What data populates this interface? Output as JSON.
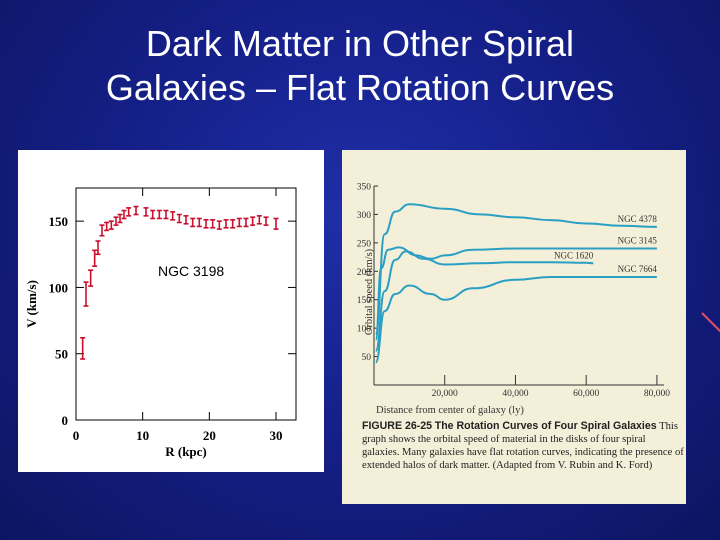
{
  "slide": {
    "title_line1": "Dark Matter in Other Spiral",
    "title_line2": "Galaxies – Flat Rotation Curves"
  },
  "colors": {
    "background": "#15208a",
    "left_points": "#c8102e",
    "right_curves": "#2a9fc4",
    "right_panel": "#f3efd9"
  },
  "chart_data": [
    {
      "type": "scatter",
      "annotation": "NGC 3198",
      "xlabel": "R (kpc)",
      "ylabel": "V (km/s)",
      "xlim": [
        0,
        33
      ],
      "ylim": [
        0,
        175
      ],
      "xticks": [
        0,
        10,
        20,
        30
      ],
      "yticks": [
        0,
        50,
        100,
        150
      ],
      "points": [
        {
          "x": 1.0,
          "y": 54,
          "err": 8
        },
        {
          "x": 1.5,
          "y": 95,
          "err": 9
        },
        {
          "x": 2.2,
          "y": 107,
          "err": 6
        },
        {
          "x": 2.8,
          "y": 122,
          "err": 6
        },
        {
          "x": 3.3,
          "y": 130,
          "err": 5
        },
        {
          "x": 3.9,
          "y": 143,
          "err": 4
        },
        {
          "x": 4.6,
          "y": 146,
          "err": 3
        },
        {
          "x": 5.3,
          "y": 147,
          "err": 3
        },
        {
          "x": 6.0,
          "y": 150,
          "err": 3
        },
        {
          "x": 6.6,
          "y": 152,
          "err": 3
        },
        {
          "x": 7.2,
          "y": 155,
          "err": 3
        },
        {
          "x": 7.9,
          "y": 157,
          "err": 3
        },
        {
          "x": 9.0,
          "y": 158,
          "err": 3
        },
        {
          "x": 10.5,
          "y": 157,
          "err": 3
        },
        {
          "x": 11.5,
          "y": 155,
          "err": 3
        },
        {
          "x": 12.5,
          "y": 155,
          "err": 3
        },
        {
          "x": 13.5,
          "y": 155,
          "err": 3
        },
        {
          "x": 14.5,
          "y": 154,
          "err": 3
        },
        {
          "x": 15.5,
          "y": 152,
          "err": 3
        },
        {
          "x": 16.5,
          "y": 151,
          "err": 3
        },
        {
          "x": 17.5,
          "y": 149,
          "err": 3
        },
        {
          "x": 18.5,
          "y": 149,
          "err": 3
        },
        {
          "x": 19.5,
          "y": 148,
          "err": 3
        },
        {
          "x": 20.5,
          "y": 148,
          "err": 3
        },
        {
          "x": 21.5,
          "y": 147,
          "err": 3
        },
        {
          "x": 22.5,
          "y": 148,
          "err": 3
        },
        {
          "x": 23.5,
          "y": 148,
          "err": 3
        },
        {
          "x": 24.5,
          "y": 149,
          "err": 3
        },
        {
          "x": 25.5,
          "y": 149,
          "err": 3
        },
        {
          "x": 26.5,
          "y": 150,
          "err": 3
        },
        {
          "x": 27.5,
          "y": 151,
          "err": 3
        },
        {
          "x": 28.5,
          "y": 150,
          "err": 3
        },
        {
          "x": 30.0,
          "y": 148,
          "err": 4
        }
      ]
    },
    {
      "type": "line",
      "xlabel": "Distance from center of galaxy (ly)",
      "ylabel": "Orbital speed (km/s)",
      "xlim": [
        0,
        82000
      ],
      "ylim": [
        0,
        350
      ],
      "xticks": [
        20000,
        40000,
        60000,
        80000
      ],
      "xtick_labels": [
        "20,000",
        "40,000",
        "60,000",
        "80,000"
      ],
      "yticks": [
        50,
        100,
        150,
        200,
        250,
        300,
        350
      ],
      "series": [
        {
          "name": "NGC 4378",
          "x": [
            500,
            3000,
            6000,
            10000,
            20000,
            30000,
            40000,
            50000,
            60000,
            70000,
            80000
          ],
          "y": [
            90,
            265,
            305,
            318,
            310,
            300,
            295,
            290,
            284,
            280,
            278
          ]
        },
        {
          "name": "NGC 3145",
          "x": [
            500,
            2000,
            4000,
            7000,
            12000,
            16000,
            20000,
            28000,
            40000,
            50000,
            60000,
            70000,
            80000
          ],
          "y": [
            80,
            205,
            238,
            242,
            228,
            222,
            228,
            238,
            240,
            240,
            240,
            240,
            240
          ]
        },
        {
          "name": "NGC 1620",
          "x": [
            500,
            3000,
            6000,
            9000,
            14000,
            20000,
            30000,
            40000,
            50000,
            60000,
            62000
          ],
          "y": [
            60,
            165,
            220,
            235,
            222,
            212,
            214,
            216,
            216,
            215,
            214
          ]
        },
        {
          "name": "NGC 7664",
          "x": [
            500,
            3000,
            6000,
            10000,
            16000,
            20000,
            28000,
            40000,
            50000,
            60000,
            70000,
            80000
          ],
          "y": [
            40,
            130,
            160,
            175,
            160,
            150,
            170,
            185,
            190,
            190,
            190,
            190
          ]
        }
      ]
    }
  ],
  "right_caption": {
    "label": "FIGURE 26-25",
    "heading": "The Rotation Curves of Four Spiral Galaxies",
    "text": "This graph shows the orbital speed of material in the disks of four spiral galaxies. Many galaxies have flat rotation curves, indicating the presence of extended halos of dark matter. (Adapted from V. Rubin and K. Ford)"
  }
}
